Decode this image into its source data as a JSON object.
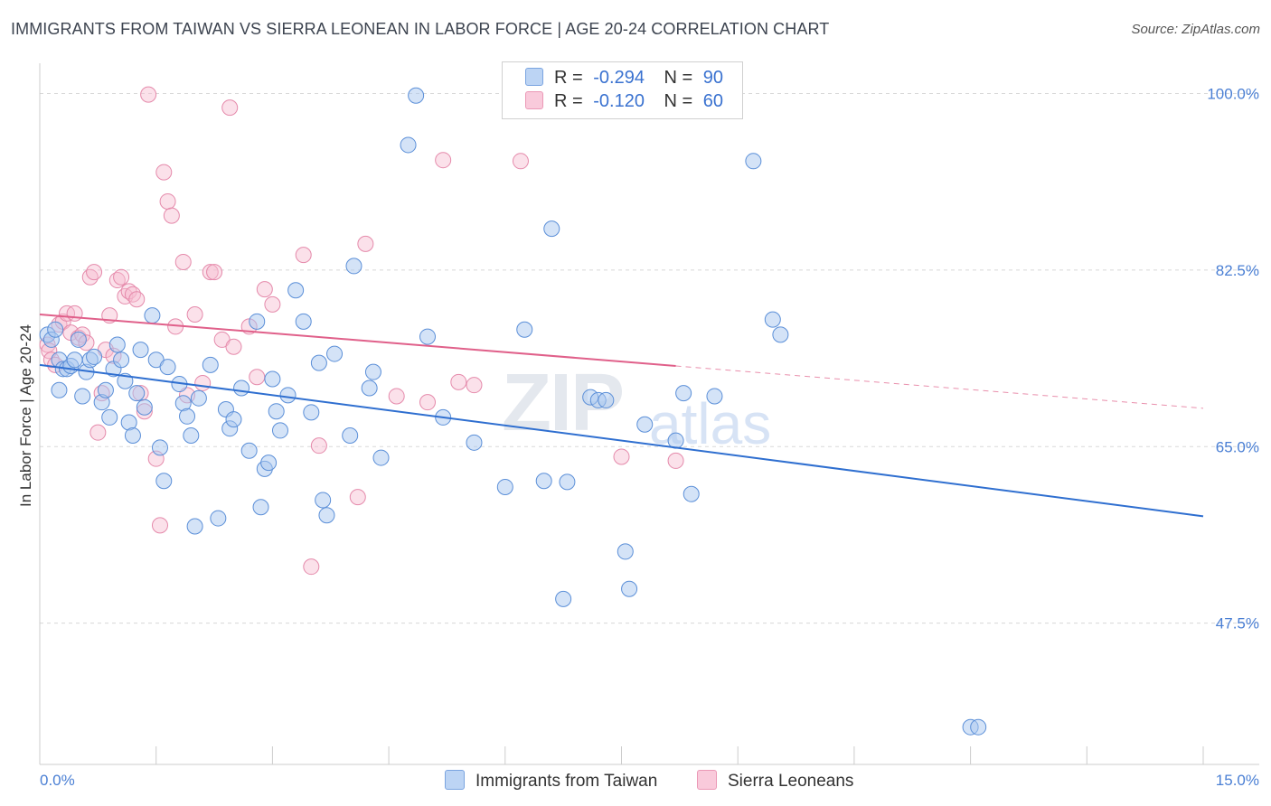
{
  "title": "IMMIGRANTS FROM TAIWAN VS SIERRA LEONEAN IN LABOR FORCE | AGE 20-24 CORRELATION CHART",
  "source": "Source: ZipAtlas.com",
  "watermark": {
    "zip": "ZIP",
    "atlas": "atlas"
  },
  "legend": {
    "rows": [
      {
        "r_label": "R =",
        "r_value": "-0.294",
        "n_label": "N =",
        "n_value": "90"
      },
      {
        "r_label": "R =",
        "r_value": "-0.120",
        "n_label": "N =",
        "n_value": "60"
      }
    ]
  },
  "bottom_legend": {
    "s1": "Immigrants from Taiwan",
    "s2": "Sierra Leoneans"
  },
  "colors": {
    "blue_fill": "#a9c8f0",
    "blue_stroke": "#5b8fd8",
    "blue_line": "#2f6fd0",
    "pink_fill": "#f7bcd0",
    "pink_stroke": "#e58aab",
    "pink_line": "#e0608a",
    "tick_text": "#4a7fd4",
    "grid": "#d8d8d8"
  },
  "chart_data": {
    "type": "scatter",
    "title": "IMMIGRANTS FROM TAIWAN VS SIERRA LEONEAN IN LABOR FORCE | AGE 20-24 CORRELATION CHART",
    "xlabel": "",
    "ylabel": "In Labor Force | Age 20-24",
    "xlim": [
      0,
      15
    ],
    "ylim": [
      33.5,
      103.0
    ],
    "x_tick_labels": [
      "0.0%",
      "15.0%"
    ],
    "y_ticks": [
      47.5,
      65.0,
      82.5,
      100.0
    ],
    "y_tick_labels": [
      "47.5%",
      "65.0%",
      "82.5%",
      "100.0%"
    ],
    "grid": true,
    "series": [
      {
        "name": "Immigrants from Taiwan",
        "color": "#a9c8f0",
        "trend": {
          "x": [
            0,
            15
          ],
          "y": [
            73.1,
            58.1
          ]
        },
        "points": [
          [
            0.1,
            76.1
          ],
          [
            0.15,
            75.6
          ],
          [
            0.2,
            76.6
          ],
          [
            0.25,
            73.6
          ],
          [
            0.25,
            70.6
          ],
          [
            0.3,
            72.7
          ],
          [
            0.35,
            72.7
          ],
          [
            0.4,
            73.0
          ],
          [
            0.45,
            73.6
          ],
          [
            0.5,
            75.6
          ],
          [
            0.55,
            70.0
          ],
          [
            0.6,
            72.4
          ],
          [
            0.65,
            73.6
          ],
          [
            0.7,
            73.9
          ],
          [
            0.8,
            69.4
          ],
          [
            0.85,
            70.6
          ],
          [
            0.9,
            67.9
          ],
          [
            0.95,
            72.7
          ],
          [
            1.0,
            75.1
          ],
          [
            1.05,
            73.6
          ],
          [
            1.1,
            71.5
          ],
          [
            1.15,
            67.4
          ],
          [
            1.2,
            66.1
          ],
          [
            1.25,
            70.3
          ],
          [
            1.3,
            74.6
          ],
          [
            1.35,
            68.9
          ],
          [
            1.45,
            78.0
          ],
          [
            1.5,
            73.6
          ],
          [
            1.55,
            64.9
          ],
          [
            1.6,
            61.6
          ],
          [
            1.65,
            72.9
          ],
          [
            1.8,
            71.2
          ],
          [
            1.85,
            69.3
          ],
          [
            1.9,
            68.0
          ],
          [
            1.95,
            66.1
          ],
          [
            2.0,
            57.1
          ],
          [
            2.05,
            69.8
          ],
          [
            2.2,
            73.1
          ],
          [
            2.3,
            57.9
          ],
          [
            2.4,
            68.7
          ],
          [
            2.45,
            66.8
          ],
          [
            2.5,
            67.7
          ],
          [
            2.6,
            70.8
          ],
          [
            2.7,
            64.6
          ],
          [
            2.8,
            77.4
          ],
          [
            2.85,
            59.0
          ],
          [
            2.9,
            62.8
          ],
          [
            2.95,
            63.4
          ],
          [
            3.0,
            71.7
          ],
          [
            3.05,
            68.5
          ],
          [
            3.1,
            66.6
          ],
          [
            3.2,
            70.1
          ],
          [
            3.3,
            80.5
          ],
          [
            3.4,
            77.4
          ],
          [
            3.5,
            68.4
          ],
          [
            3.6,
            73.3
          ],
          [
            3.65,
            59.7
          ],
          [
            3.7,
            58.2
          ],
          [
            3.8,
            74.2
          ],
          [
            4.0,
            66.1
          ],
          [
            4.05,
            82.9
          ],
          [
            4.25,
            70.8
          ],
          [
            4.3,
            72.4
          ],
          [
            4.4,
            63.9
          ],
          [
            4.75,
            94.9
          ],
          [
            4.85,
            99.8
          ],
          [
            5.0,
            75.9
          ],
          [
            5.2,
            67.9
          ],
          [
            5.6,
            65.4
          ],
          [
            6.0,
            61.0
          ],
          [
            6.25,
            76.6
          ],
          [
            6.5,
            61.6
          ],
          [
            6.6,
            86.6
          ],
          [
            6.75,
            49.9
          ],
          [
            6.8,
            61.5
          ],
          [
            7.1,
            69.9
          ],
          [
            7.2,
            69.6
          ],
          [
            7.3,
            69.6
          ],
          [
            7.55,
            54.6
          ],
          [
            7.6,
            50.9
          ],
          [
            7.8,
            67.2
          ],
          [
            8.2,
            65.6
          ],
          [
            8.3,
            70.3
          ],
          [
            8.4,
            60.3
          ],
          [
            8.7,
            70.0
          ],
          [
            9.2,
            93.3
          ],
          [
            9.45,
            77.6
          ],
          [
            9.55,
            76.1
          ],
          [
            12.0,
            37.2
          ],
          [
            12.1,
            37.2
          ]
        ]
      },
      {
        "name": "Sierra Leoneans",
        "color": "#f7bcd0",
        "trend": {
          "x": [
            0,
            8.2
          ],
          "y": [
            78.1,
            73.0
          ]
        },
        "trend_extension": {
          "x": [
            8.2,
            15
          ],
          "y": [
            73.0,
            68.8
          ]
        },
        "points": [
          [
            0.1,
            75.1
          ],
          [
            0.12,
            74.5
          ],
          [
            0.15,
            73.6
          ],
          [
            0.2,
            73.1
          ],
          [
            0.25,
            77.1
          ],
          [
            0.3,
            77.4
          ],
          [
            0.35,
            78.2
          ],
          [
            0.4,
            76.3
          ],
          [
            0.45,
            78.2
          ],
          [
            0.5,
            75.8
          ],
          [
            0.55,
            76.1
          ],
          [
            0.6,
            75.3
          ],
          [
            0.65,
            81.8
          ],
          [
            0.7,
            82.3
          ],
          [
            0.75,
            66.4
          ],
          [
            0.8,
            70.3
          ],
          [
            0.85,
            74.6
          ],
          [
            0.9,
            78.0
          ],
          [
            0.95,
            74.0
          ],
          [
            1.0,
            81.5
          ],
          [
            1.05,
            81.8
          ],
          [
            1.1,
            79.9
          ],
          [
            1.15,
            80.4
          ],
          [
            1.2,
            80.1
          ],
          [
            1.25,
            79.6
          ],
          [
            1.3,
            70.3
          ],
          [
            1.35,
            68.5
          ],
          [
            1.4,
            99.9
          ],
          [
            1.5,
            63.8
          ],
          [
            1.55,
            57.2
          ],
          [
            1.6,
            92.2
          ],
          [
            1.65,
            89.3
          ],
          [
            1.7,
            87.9
          ],
          [
            1.75,
            76.9
          ],
          [
            1.85,
            83.3
          ],
          [
            1.9,
            70.1
          ],
          [
            2.0,
            78.1
          ],
          [
            2.1,
            71.3
          ],
          [
            2.2,
            82.3
          ],
          [
            2.25,
            82.3
          ],
          [
            2.35,
            75.6
          ],
          [
            2.45,
            98.6
          ],
          [
            2.5,
            74.9
          ],
          [
            2.7,
            76.9
          ],
          [
            2.8,
            71.9
          ],
          [
            2.9,
            80.6
          ],
          [
            3.0,
            79.1
          ],
          [
            3.4,
            84.0
          ],
          [
            3.5,
            53.1
          ],
          [
            3.6,
            65.1
          ],
          [
            4.1,
            60.0
          ],
          [
            4.2,
            85.1
          ],
          [
            4.6,
            70.0
          ],
          [
            5.0,
            69.4
          ],
          [
            5.2,
            93.4
          ],
          [
            5.4,
            71.4
          ],
          [
            5.6,
            71.1
          ],
          [
            6.2,
            93.3
          ],
          [
            7.5,
            64.0
          ],
          [
            8.2,
            63.6
          ]
        ]
      }
    ]
  }
}
